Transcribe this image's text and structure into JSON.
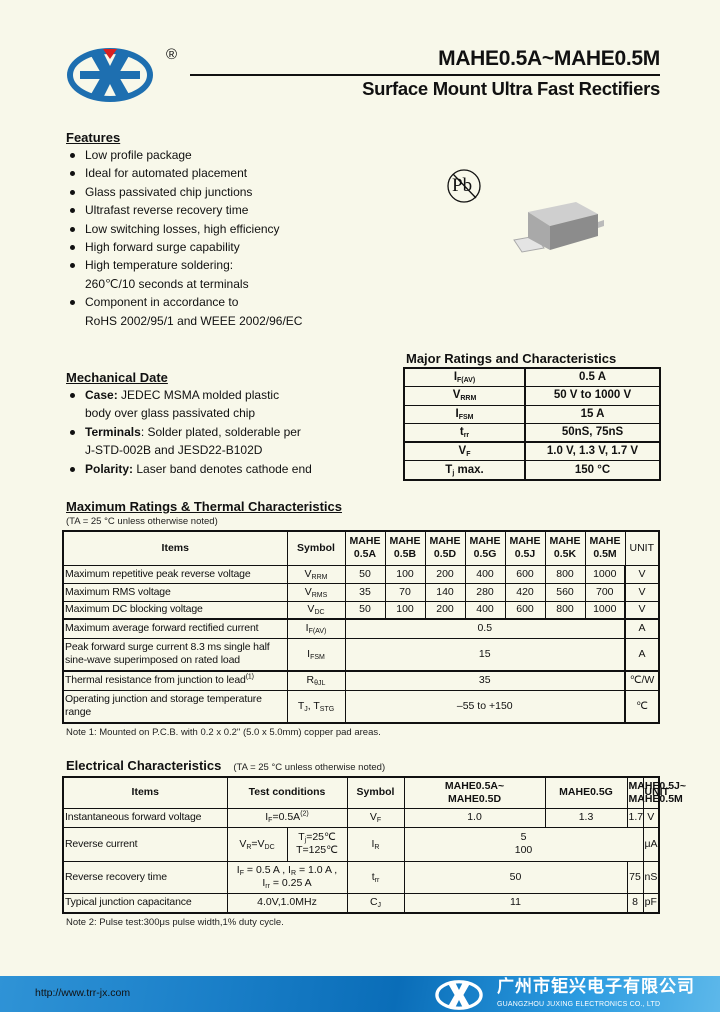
{
  "header": {
    "title": "MAHE0.5A~MAHE0.5M",
    "subtitle": "Surface Mount Ultra Fast Rectifiers",
    "registered_mark": "®",
    "brand_color": "#1e6fb0",
    "accent_color": "#d92020"
  },
  "features": {
    "heading": "Features",
    "items": [
      {
        "text": "Low profile package"
      },
      {
        "text": "Ideal for automated placement"
      },
      {
        "text": "Glass passivated chip junctions"
      },
      {
        "text": "Ultrafast reverse recovery time"
      },
      {
        "text": "Low switching losses, high efficiency"
      },
      {
        "text": "High forward surge capability"
      },
      {
        "text": "High temperature soldering:",
        "cont": "260℃/10 seconds at terminals"
      },
      {
        "text": "Component in accordance to",
        "cont": "RoHS 2002/95/1 and WEEE 2002/96/EC"
      }
    ]
  },
  "pb_free_label": "Pb",
  "mechanical": {
    "heading": "Mechanical Date",
    "items": [
      {
        "bold": "Case:",
        "text": " JEDEC MSMA molded plastic",
        "cont": "body over glass passivated chip"
      },
      {
        "bold": "Terminals",
        "text": ": Solder plated, solderable per",
        "cont": "J-STD-002B and JESD22-B102D"
      },
      {
        "bold": "Polarity:",
        "text": " Laser band denotes cathode end"
      }
    ]
  },
  "major": {
    "heading": "Major Ratings and Characteristics",
    "rows": [
      [
        [
          [
            "I",
            ""
          ],
          [
            "F(AV)",
            "sub"
          ]
        ],
        "0.5 A"
      ],
      [
        [
          [
            "V",
            ""
          ],
          [
            "RRM",
            "sub"
          ]
        ],
        "50 V to 1000 V"
      ],
      [
        [
          [
            "I",
            ""
          ],
          [
            "FSM",
            "sub"
          ]
        ],
        "15 A"
      ],
      [
        [
          [
            "t",
            ""
          ],
          [
            "rr",
            "sub"
          ]
        ],
        "50nS, 75nS"
      ],
      [
        [
          [
            "V",
            ""
          ],
          [
            "F",
            "sub"
          ]
        ],
        "1.0 V, 1.3 V, 1.7 V"
      ],
      [
        [
          [
            "T",
            ""
          ],
          [
            "j",
            "sub"
          ],
          [
            " max.",
            ""
          ]
        ],
        "150 °C"
      ]
    ]
  },
  "max_ratings": {
    "heading": "Maximum Ratings & Thermal Characteristics",
    "condition": "(TA = 25 °C unless otherwise noted)",
    "headers": [
      "Items",
      "Symbol",
      "MAHE 0.5A",
      "MAHE 0.5B",
      "MAHE 0.5D",
      "MAHE 0.5G",
      "MAHE 0.5J",
      "MAHE 0.5K",
      "MAHE 0.5M",
      "UNIT"
    ],
    "rows": [
      {
        "item": "Maximum repetitive peak reverse voltage",
        "symbol": [
          [
            "V",
            ""
          ],
          [
            "RRM",
            "sub"
          ]
        ],
        "values": [
          "50",
          "100",
          "200",
          "400",
          "600",
          "800",
          "1000"
        ],
        "unit": "V"
      },
      {
        "item": "Maximum RMS voltage",
        "symbol": [
          [
            "V",
            ""
          ],
          [
            "RMS",
            "sub"
          ]
        ],
        "values": [
          "35",
          "70",
          "140",
          "280",
          "420",
          "560",
          "700"
        ],
        "unit": "V"
      },
      {
        "item": "Maximum DC blocking voltage",
        "symbol": [
          [
            "V",
            ""
          ],
          [
            "DC",
            "sub"
          ]
        ],
        "values": [
          "50",
          "100",
          "200",
          "400",
          "600",
          "800",
          "1000"
        ],
        "unit": "V"
      },
      {
        "item": "Maximum average forward rectified current",
        "symbol": [
          [
            "I",
            ""
          ],
          [
            "F(AV)",
            "sub"
          ]
        ],
        "values": [
          "0.5"
        ],
        "unit": "A"
      },
      {
        "item": "Peak forward surge current 8.3 ms single half sine-wave superimposed on rated load",
        "symbol": [
          [
            "I",
            ""
          ],
          [
            "FSM",
            "sub"
          ]
        ],
        "values": [
          "15"
        ],
        "unit": "A"
      },
      {
        "item": [
          [
            "Thermal resistance from junction to lead",
            ""
          ],
          [
            "(1)",
            "sup"
          ]
        ],
        "symbol": [
          [
            "R",
            ""
          ],
          [
            "θJL",
            "sub"
          ]
        ],
        "values": [
          "35"
        ],
        "unit": "℃/W"
      },
      {
        "item": "Operating junction and storage temperature range",
        "symbol": [
          [
            "T",
            ""
          ],
          [
            "J",
            "sub"
          ],
          [
            ", T",
            ""
          ],
          [
            "STG",
            "sub"
          ]
        ],
        "values": [
          "–55 to +150"
        ],
        "unit": "℃"
      }
    ],
    "note": "Note 1:  Mounted on P.C.B. with 0.2 x 0.2\" (5.0 x 5.0mm) copper pad areas."
  },
  "electrical": {
    "heading": "Electrical Characteristics",
    "condition": "(TA = 25 °C unless otherwise noted)",
    "headers": [
      "Items",
      "Test conditions",
      "Symbol",
      "MAHE0.5A~ MAHE0.5D",
      "MAHE0.5G",
      "MAHE0.5J~ MAHE0.5M",
      "UNIT"
    ],
    "rows": [
      {
        "item": "Instantaneous forward voltage",
        "test": [
          [
            [
              "I",
              ""
            ],
            [
              "F",
              "sub"
            ],
            [
              "=0.5A",
              ""
            ],
            [
              "(2)",
              "sup"
            ]
          ]
        ],
        "symbol": [
          [
            "V",
            ""
          ],
          [
            "F",
            "sub"
          ]
        ],
        "values": [
          "1.0",
          "1.3",
          "1.7"
        ],
        "unit": "V"
      },
      {
        "item": "Reverse current",
        "test": [
          [
            [
              "V",
              ""
            ],
            [
              "R",
              "sub"
            ],
            [
              "=V",
              ""
            ],
            [
              "DC",
              "sub"
            ]
          ],
          [
            [
              "T",
              ""
            ],
            [
              "j",
              "sub"
            ],
            [
              "=25℃",
              ""
            ],
            [
              "\n",
              ""
            ],
            [
              "T=125℃",
              ""
            ]
          ]
        ],
        "symbol": [
          [
            "I",
            ""
          ],
          [
            "R",
            "sub"
          ]
        ],
        "values": [
          "5\n100"
        ],
        "unit": "μA"
      },
      {
        "item": "Reverse recovery time",
        "test": [
          [
            [
              "I",
              ""
            ],
            [
              "F",
              "sub"
            ],
            [
              " = 0.5 A , I",
              ""
            ],
            [
              "R",
              "sub"
            ],
            [
              " = 1.0 A ,",
              ""
            ],
            [
              "\n",
              ""
            ],
            [
              "I",
              ""
            ],
            [
              "rr",
              "sub"
            ],
            [
              " = 0.25 A",
              ""
            ]
          ]
        ],
        "symbol": [
          [
            "t",
            ""
          ],
          [
            "rr",
            "sub"
          ]
        ],
        "values": [
          "50",
          "75"
        ],
        "unit": "nS"
      },
      {
        "item": "Typical junction capacitance",
        "test": [
          [
            [
              "4.0V,1.0MHz",
              ""
            ]
          ]
        ],
        "symbol": [
          [
            "C",
            ""
          ],
          [
            "J",
            "sub"
          ]
        ],
        "values": [
          "11",
          "8"
        ],
        "unit": "pF"
      }
    ],
    "note": "Note 2: Pulse test:300μs pulse width,1% duty cycle."
  },
  "footer": {
    "url": "http://www.trr-jx.com",
    "company_cn": "广州市钜兴电子有限公司",
    "company_en": "GUANGZHOU JUXING ELECTRONICS CO., LTD"
  }
}
